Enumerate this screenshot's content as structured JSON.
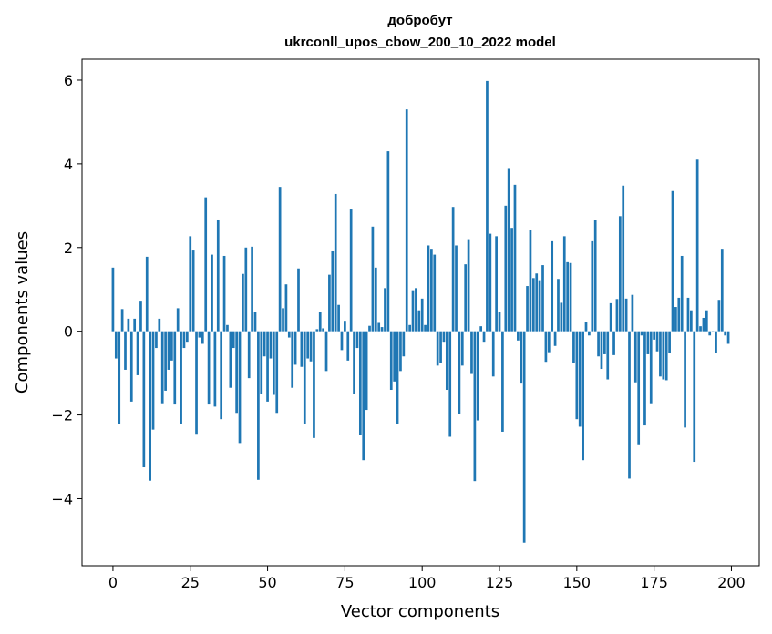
{
  "chart_data": {
    "type": "bar",
    "title_line1": "добробут",
    "title_line2": "ukrconll_upos_cbow_200_10_2022 model",
    "xlabel": "Vector components",
    "ylabel": "Components values",
    "xlim": [
      -10,
      209
    ],
    "ylim": [
      -5.6,
      6.5
    ],
    "xticks": [
      0,
      25,
      50,
      75,
      100,
      125,
      150,
      175,
      200
    ],
    "yticks": [
      -4,
      -2,
      0,
      2,
      4,
      6
    ],
    "ytick_labels": [
      "−4",
      "−2",
      "0",
      "2",
      "4",
      "6"
    ],
    "bar_color": "#1f77b4",
    "grid": false,
    "values": [
      1.52,
      -0.65,
      -2.22,
      0.53,
      -0.92,
      0.3,
      -1.68,
      0.3,
      -1.05,
      0.73,
      -3.25,
      1.78,
      -3.57,
      -2.35,
      -0.4,
      0.3,
      -1.72,
      -1.42,
      -0.92,
      -0.7,
      -1.75,
      0.55,
      -2.22,
      -0.4,
      -0.25,
      2.27,
      1.95,
      -2.45,
      -0.15,
      -0.3,
      3.2,
      -1.75,
      1.83,
      -1.8,
      2.67,
      -2.1,
      1.8,
      0.15,
      -1.35,
      -0.4,
      -1.95,
      -2.67,
      1.37,
      2.0,
      -1.12,
      2.02,
      0.47,
      -3.55,
      -1.5,
      -0.6,
      -1.68,
      -0.65,
      -1.52,
      -1.95,
      3.45,
      0.55,
      1.12,
      -0.15,
      -1.35,
      -0.8,
      1.5,
      -0.85,
      -2.22,
      -0.65,
      -0.72,
      -2.55,
      0.05,
      0.45,
      0.07,
      -0.95,
      1.35,
      1.93,
      3.28,
      0.63,
      -0.45,
      0.25,
      -0.7,
      2.93,
      -1.5,
      -0.4,
      -2.48,
      -3.08,
      -1.88,
      0.13,
      2.5,
      1.52,
      0.2,
      0.1,
      1.03,
      4.3,
      -1.4,
      -1.2,
      -2.22,
      -0.95,
      -0.6,
      5.3,
      0.15,
      0.98,
      1.03,
      0.5,
      0.78,
      0.15,
      2.05,
      1.97,
      1.83,
      -0.82,
      -0.75,
      -0.25,
      -1.4,
      -2.52,
      2.97,
      2.05,
      -1.98,
      -0.82,
      1.6,
      2.2,
      -1.02,
      -3.58,
      -2.13,
      0.12,
      -0.25,
      5.98,
      2.33,
      -1.08,
      2.27,
      0.45,
      -2.4,
      3.0,
      3.9,
      2.47,
      3.5,
      -0.22,
      -1.25,
      -5.05,
      1.08,
      2.42,
      1.27,
      1.38,
      1.22,
      1.58,
      -0.73,
      -0.5,
      2.15,
      -0.35,
      1.25,
      0.68,
      2.27,
      1.65,
      1.63,
      -0.75,
      -2.1,
      -2.28,
      -3.08,
      0.22,
      -0.1,
      2.15,
      2.65,
      -0.6,
      -0.9,
      -0.55,
      -1.15,
      0.67,
      -0.57,
      0.77,
      2.75,
      3.48,
      0.78,
      -3.52,
      0.87,
      -1.22,
      -2.7,
      -0.1,
      -2.25,
      -0.55,
      -1.72,
      -0.2,
      -0.48,
      -1.08,
      -1.15,
      -1.17,
      -0.52,
      3.35,
      0.58,
      0.8,
      1.8,
      -2.3,
      0.8,
      0.5,
      -3.12,
      4.1,
      0.12,
      0.32,
      0.5,
      -0.1,
      0.0,
      -0.52,
      0.75,
      1.97,
      -0.1,
      -0.3
    ]
  }
}
